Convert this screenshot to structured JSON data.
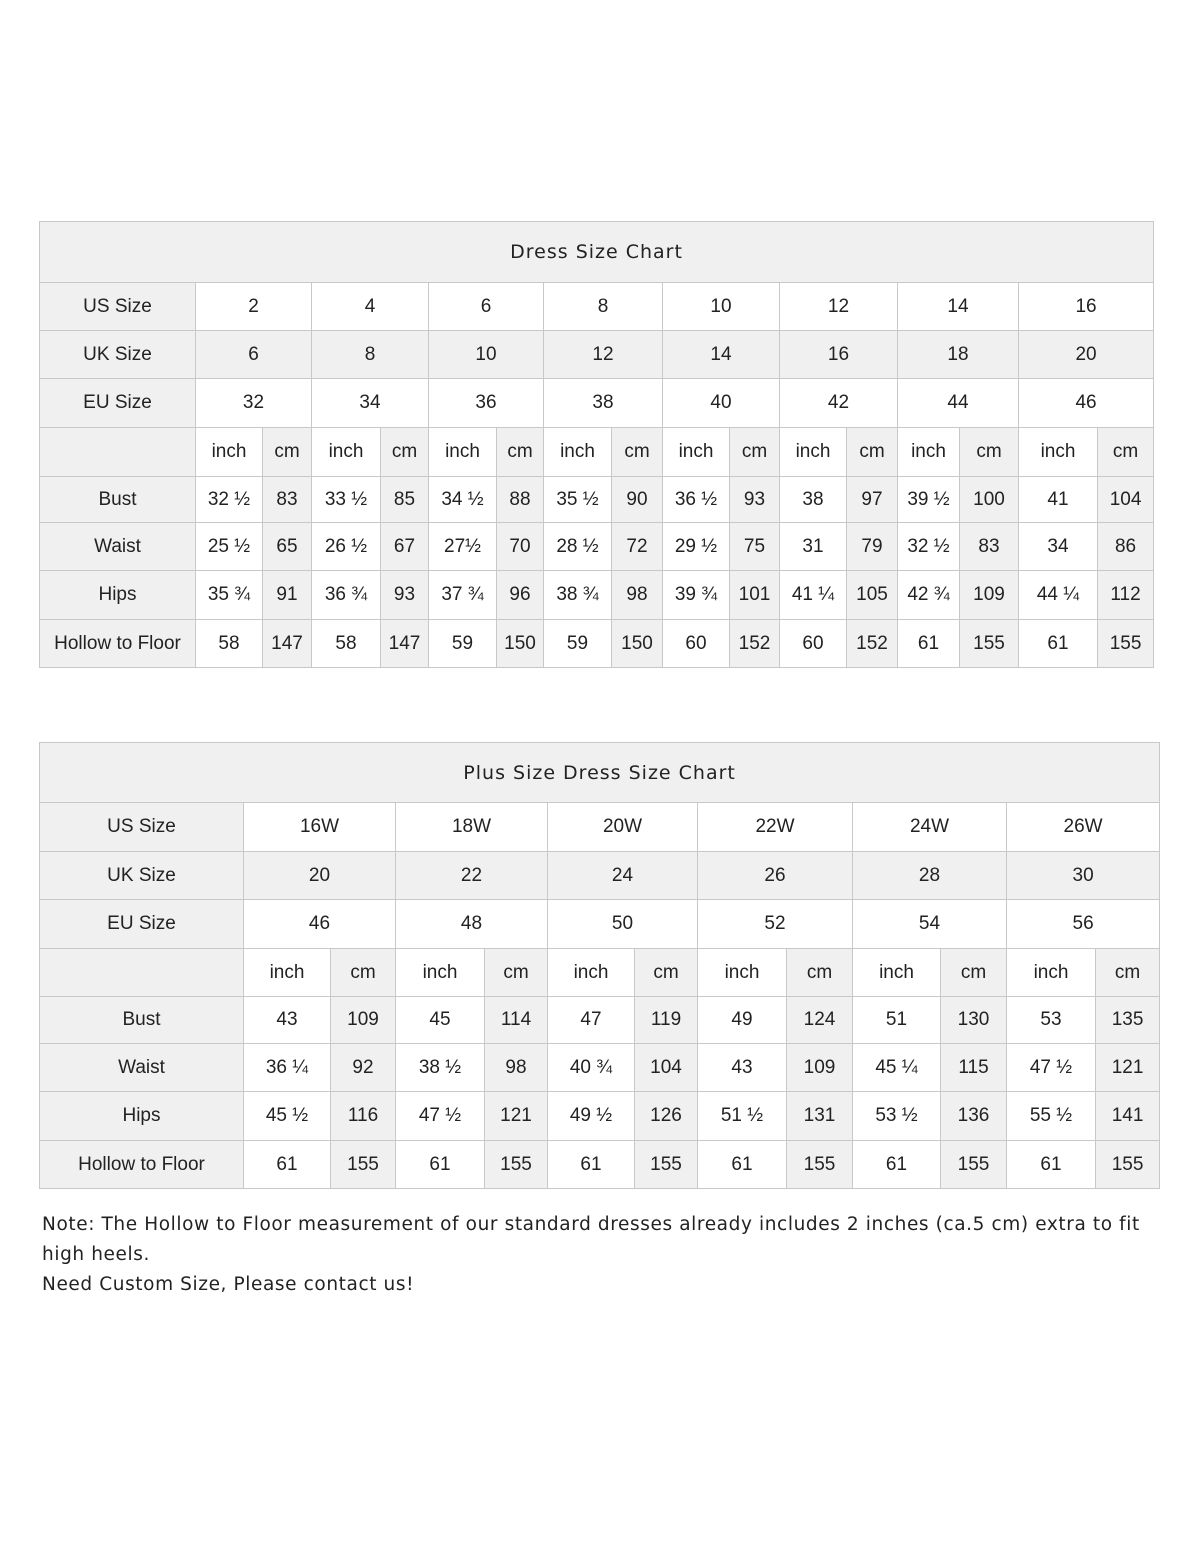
{
  "tables": [
    {
      "title": "Dress Size Chart",
      "size_rows": [
        {
          "label": "US Size",
          "values": [
            "2",
            "4",
            "6",
            "8",
            "10",
            "12",
            "14",
            "16"
          ]
        },
        {
          "label": "UK Size",
          "values": [
            "6",
            "8",
            "10",
            "12",
            "14",
            "16",
            "18",
            "20"
          ]
        },
        {
          "label": "EU Size",
          "values": [
            "32",
            "34",
            "36",
            "38",
            "40",
            "42",
            "44",
            "46"
          ]
        }
      ],
      "unit_labels": {
        "inch": "inch",
        "cm": "cm"
      },
      "measure_rows": [
        {
          "label": "Bust",
          "values": [
            [
              "32 ½",
              "83"
            ],
            [
              "33 ½",
              "85"
            ],
            [
              "34 ½",
              "88"
            ],
            [
              "35 ½",
              "90"
            ],
            [
              "36 ½",
              "93"
            ],
            [
              "38",
              "97"
            ],
            [
              "39 ½",
              "100"
            ],
            [
              "41",
              "104"
            ]
          ]
        },
        {
          "label": "Waist",
          "values": [
            [
              "25 ½",
              "65"
            ],
            [
              "26 ½",
              "67"
            ],
            [
              "27½",
              "70"
            ],
            [
              "28 ½",
              "72"
            ],
            [
              "29 ½",
              "75"
            ],
            [
              "31",
              "79"
            ],
            [
              "32 ½",
              "83"
            ],
            [
              "34",
              "86"
            ]
          ]
        },
        {
          "label": "Hips",
          "values": [
            [
              "35 ¾",
              "91"
            ],
            [
              "36 ¾",
              "93"
            ],
            [
              "37 ¾",
              "96"
            ],
            [
              "38 ¾",
              "98"
            ],
            [
              "39 ¾",
              "101"
            ],
            [
              "41 ¼",
              "105"
            ],
            [
              "42 ¾",
              "109"
            ],
            [
              "44 ¼",
              "112"
            ]
          ]
        },
        {
          "label": "Hollow to Floor",
          "values": [
            [
              "58",
              "147"
            ],
            [
              "58",
              "147"
            ],
            [
              "59",
              "150"
            ],
            [
              "59",
              "150"
            ],
            [
              "60",
              "152"
            ],
            [
              "60",
              "152"
            ],
            [
              "61",
              "155"
            ],
            [
              "61",
              "155"
            ]
          ]
        }
      ]
    },
    {
      "title": "Plus Size Dress Size Chart",
      "size_rows": [
        {
          "label": "US Size",
          "values": [
            "16W",
            "18W",
            "20W",
            "22W",
            "24W",
            "26W"
          ]
        },
        {
          "label": "UK Size",
          "values": [
            "20",
            "22",
            "24",
            "26",
            "28",
            "30"
          ]
        },
        {
          "label": "EU Size",
          "values": [
            "46",
            "48",
            "50",
            "52",
            "54",
            "56"
          ]
        }
      ],
      "unit_labels": {
        "inch": "inch",
        "cm": "cm"
      },
      "measure_rows": [
        {
          "label": "Bust",
          "values": [
            [
              "43",
              "109"
            ],
            [
              "45",
              "114"
            ],
            [
              "47",
              "119"
            ],
            [
              "49",
              "124"
            ],
            [
              "51",
              "130"
            ],
            [
              "53",
              "135"
            ]
          ]
        },
        {
          "label": "Waist",
          "values": [
            [
              "36 ¼",
              "92"
            ],
            [
              "38 ½",
              "98"
            ],
            [
              "40 ¾",
              "104"
            ],
            [
              "43",
              "109"
            ],
            [
              "45 ¼",
              "115"
            ],
            [
              "47 ½",
              "121"
            ]
          ]
        },
        {
          "label": "Hips",
          "values": [
            [
              "45 ½",
              "116"
            ],
            [
              "47 ½",
              "121"
            ],
            [
              "49 ½",
              "126"
            ],
            [
              "51 ½",
              "131"
            ],
            [
              "53 ½",
              "136"
            ],
            [
              "55 ½",
              "141"
            ]
          ]
        },
        {
          "label": "Hollow to Floor",
          "values": [
            [
              "61",
              "155"
            ],
            [
              "61",
              "155"
            ],
            [
              "61",
              "155"
            ],
            [
              "61",
              "155"
            ],
            [
              "61",
              "155"
            ],
            [
              "61",
              "155"
            ]
          ]
        }
      ]
    }
  ],
  "note": {
    "line1": "Note: The Hollow to Floor measurement of our standard dresses already includes 2 inches (ca.5 cm) extra to fit high heels.",
    "line2": "Need Custom Size, Please contact us!"
  }
}
